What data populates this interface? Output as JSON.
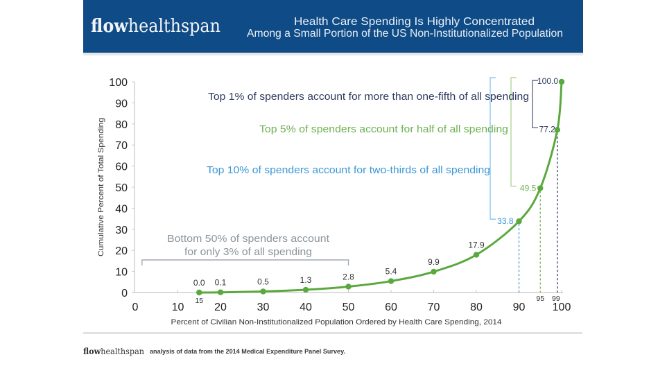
{
  "header": {
    "logo_bold": "flow",
    "logo_light": "healthspan",
    "title_line1": "Health Care Spending Is Highly Concentrated",
    "title_line2": "Among a Small Portion of the US Non-Institutionalized Population"
  },
  "colors": {
    "header_bg": "#0f4c87",
    "header_text": "#e9eef5",
    "curve": "#5aa83e",
    "top1": "#2f3a5f",
    "top5": "#6cb250",
    "top10": "#3d97d5",
    "bottom50": "#8a949b",
    "bracket_top1": "#646c8c",
    "bracket_top5": "#b0d898",
    "bracket_top10": "#8cc8ee",
    "bracket_bottom50": "#a2aab0",
    "axis": "#c8c8c8",
    "tick_text": "#222222"
  },
  "chart_data": {
    "type": "line",
    "title": "Health Care Spending Is Highly Concentrated Among a Small Portion of the US Non-Institutionalized Population",
    "xlabel": "Percent of Civilian Non-Institutionalized Population Ordered by Health Care Spending, 2014",
    "ylabel": "Cumulative Percent of Total Spending",
    "xlim": [
      0,
      100
    ],
    "ylim": [
      0,
      100
    ],
    "xticks": [
      0,
      10,
      20,
      30,
      40,
      50,
      60,
      70,
      80,
      90,
      100
    ],
    "yticks": [
      0,
      10,
      20,
      30,
      40,
      50,
      60,
      70,
      80,
      90,
      100
    ],
    "grid": false,
    "legend": "none",
    "series": [
      {
        "name": "Cumulative Percent of Total Spending",
        "x": [
          15,
          20,
          30,
          40,
          50,
          60,
          70,
          80,
          90,
          95,
          99,
          100
        ],
        "y": [
          0.0,
          0.1,
          0.5,
          1.3,
          2.8,
          5.4,
          9.9,
          17.9,
          33.8,
          49.5,
          77.2,
          100.0
        ],
        "labels": [
          "0.0",
          "0.1",
          "0.5",
          "1.3",
          "2.8",
          "5.4",
          "9.9",
          "17.9",
          "33.8",
          "49.5",
          "77.2",
          "100.0"
        ]
      }
    ],
    "extra_x_labels": [
      {
        "x": 15,
        "label": "15"
      },
      {
        "x": 95,
        "label": "95"
      },
      {
        "x": 99,
        "label": "99"
      }
    ],
    "annotations": [
      {
        "id": "top1",
        "text": "Top 1% of spenders account for more than one-fifth of all spending",
        "from_x": 99,
        "from_y": 77.2,
        "to_y": 100.0
      },
      {
        "id": "top5",
        "text": "Top 5% of spenders account for half of all spending",
        "from_x": 95,
        "from_y": 49.5,
        "to_y": 100.0
      },
      {
        "id": "top10",
        "text": "Top 10% of spenders account for two-thirds of all spending",
        "from_x": 90,
        "from_y": 33.8,
        "to_y": 100.0
      },
      {
        "id": "bottom50",
        "lines": [
          "Bottom 50% of spenders account",
          "for only 3% of all spending"
        ],
        "x_range": [
          0,
          50
        ]
      }
    ]
  },
  "footer": {
    "logo_bold": "flow",
    "logo_light": "healthspan",
    "source": "analysis of data from the 2014 Medical Expenditure Panel Survey."
  }
}
